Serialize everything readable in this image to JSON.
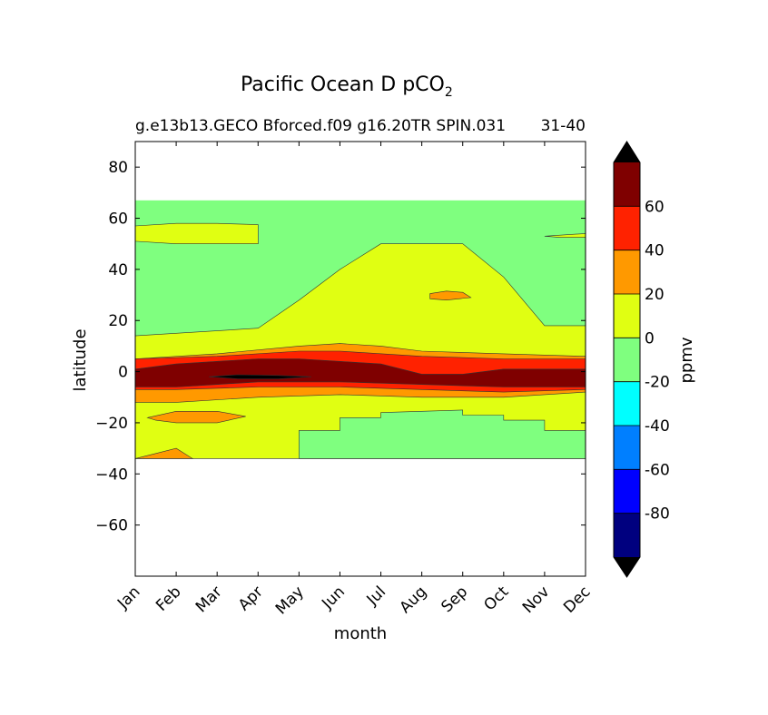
{
  "chart_data": {
    "type": "contourf",
    "title": "Pacific Ocean D pCO",
    "title_subscript": "2",
    "subtitle_left": "g.e13b13.GECO Bforced.f09 g16.20TR SPIN.031",
    "subtitle_right": "31-40",
    "xlabel": "month",
    "ylabel": "latitude",
    "x_categories": [
      "Jan",
      "Feb",
      "Mar",
      "Apr",
      "May",
      "Jun",
      "Jul",
      "Aug",
      "Sep",
      "Oct",
      "Nov",
      "Dec"
    ],
    "yticks": [
      -60,
      -40,
      -20,
      0,
      20,
      40,
      60,
      80
    ],
    "ytick_labels": [
      "−60",
      "−40",
      "−20",
      "0",
      "20",
      "40",
      "60",
      "80"
    ],
    "ylim": [
      -80,
      90
    ],
    "data_lat_range": [
      -34,
      67
    ],
    "colorbar": {
      "label": "ppmv",
      "levels": [
        -100,
        -80,
        -60,
        -40,
        -20,
        0,
        20,
        40,
        60,
        80
      ],
      "tick_values": [
        -80,
        -60,
        -40,
        -20,
        0,
        20,
        40,
        60
      ],
      "tick_labels": [
        "-80",
        "-60",
        "-40",
        "-20",
        "0",
        "20",
        "40",
        "60"
      ],
      "colors": [
        "#00007f",
        "#0000ff",
        "#007fff",
        "#00ffff",
        "#7fff7f",
        "#e0ff12",
        "#ff9900",
        "#ff2200",
        "#7f0000"
      ],
      "under_color": "#000000",
      "over_color": "#000000",
      "extend": "both"
    },
    "regions": [
      {
        "name": "band-yellow",
        "level": "0 to 20",
        "color": "#e0ff12",
        "points": [
          [
            1,
            14
          ],
          [
            4,
            17
          ],
          [
            5,
            28
          ],
          [
            6,
            40
          ],
          [
            7,
            50
          ],
          [
            9,
            50
          ],
          [
            10,
            37
          ],
          [
            11,
            18
          ],
          [
            12,
            18
          ],
          [
            12,
            -12
          ],
          [
            10,
            -12
          ],
          [
            8,
            -10
          ],
          [
            6,
            -8
          ],
          [
            4,
            -8
          ],
          [
            2,
            -8
          ],
          [
            1,
            -8
          ]
        ]
      },
      {
        "name": "band-yellow-south",
        "level": "0 to 20",
        "color": "#e0ff12",
        "points": [
          [
            1,
            -6
          ],
          [
            12,
            -6
          ],
          [
            12,
            -34
          ],
          [
            1,
            -34
          ]
        ]
      },
      {
        "name": "band-green-south",
        "level": "-20 to 0",
        "color": "#7fff7f",
        "points": [
          [
            5,
            -34
          ],
          [
            5,
            -23
          ],
          [
            6,
            -23
          ],
          [
            6,
            -18
          ],
          [
            7,
            -18
          ],
          [
            7,
            -16
          ],
          [
            9,
            -15
          ],
          [
            9,
            -17
          ],
          [
            10,
            -17
          ],
          [
            10,
            -19
          ],
          [
            11,
            -19
          ],
          [
            11,
            -23
          ],
          [
            12,
            -23
          ],
          [
            12,
            -34
          ]
        ]
      },
      {
        "name": "band-orange-north",
        "level": "20 to 40",
        "color": "#ff9900",
        "points": [
          [
            1,
            5
          ],
          [
            3,
            7
          ],
          [
            5,
            10
          ],
          [
            6,
            11
          ],
          [
            7,
            10
          ],
          [
            8,
            8
          ],
          [
            10,
            7
          ],
          [
            12,
            6
          ],
          [
            12,
            -8
          ],
          [
            10,
            -10
          ],
          [
            8,
            -10
          ],
          [
            6,
            -9
          ],
          [
            4,
            -10
          ],
          [
            2,
            -12
          ],
          [
            1,
            -12
          ]
        ]
      },
      {
        "name": "band-red",
        "level": "40 to 60",
        "color": "#ff2200",
        "points": [
          [
            1,
            5
          ],
          [
            3,
            6
          ],
          [
            5,
            8
          ],
          [
            6,
            8
          ],
          [
            8,
            6
          ],
          [
            10,
            5
          ],
          [
            12,
            5
          ],
          [
            12,
            -7
          ],
          [
            10,
            -8
          ],
          [
            8,
            -7
          ],
          [
            6,
            -6
          ],
          [
            4,
            -6
          ],
          [
            2,
            -7
          ],
          [
            1,
            -7
          ]
        ]
      },
      {
        "name": "band-darkred",
        "level": "60 to 80",
        "color": "#7f0000",
        "points": [
          [
            1,
            1
          ],
          [
            2,
            3
          ],
          [
            4,
            5
          ],
          [
            5,
            5
          ],
          [
            6,
            4
          ],
          [
            7,
            3
          ],
          [
            8,
            -1
          ],
          [
            9,
            -1
          ],
          [
            10,
            1
          ],
          [
            12,
            1
          ],
          [
            12,
            -6
          ],
          [
            10,
            -6
          ],
          [
            8,
            -5
          ],
          [
            6,
            -4
          ],
          [
            4,
            -4
          ],
          [
            3,
            -5
          ],
          [
            2,
            -6
          ],
          [
            1,
            -6
          ]
        ]
      },
      {
        "name": "yellow-north-patch",
        "level": "0 to 20",
        "color": "#e0ff12",
        "points": [
          [
            1,
            57
          ],
          [
            2,
            58
          ],
          [
            3,
            58
          ],
          [
            4,
            57.5
          ],
          [
            4,
            50
          ],
          [
            3,
            50
          ],
          [
            2,
            50
          ],
          [
            1,
            51
          ]
        ]
      },
      {
        "name": "orange-south-patch",
        "level": "20 to 40",
        "color": "#ff9900",
        "points": [
          [
            1.3,
            -18
          ],
          [
            2,
            -15.5
          ],
          [
            3,
            -15.5
          ],
          [
            3.7,
            -17.5
          ],
          [
            3,
            -20
          ],
          [
            2,
            -20
          ],
          [
            1.5,
            -19
          ]
        ]
      },
      {
        "name": "orange-aug-patch",
        "level": "20 to 40",
        "color": "#ff9900",
        "points": [
          [
            8.2,
            30.5
          ],
          [
            8.6,
            31.5
          ],
          [
            9,
            31
          ],
          [
            9.2,
            29
          ],
          [
            8.6,
            28
          ],
          [
            8.2,
            28.5
          ]
        ]
      },
      {
        "name": "orange-jan-south",
        "level": "20 to 40",
        "color": "#ff9900",
        "points": [
          [
            1,
            -34
          ],
          [
            1.5,
            -32
          ],
          [
            2,
            -30
          ],
          [
            2.4,
            -34
          ]
        ]
      },
      {
        "name": "yellow-dec-patch",
        "level": "0 to 20",
        "color": "#e0ff12",
        "points": [
          [
            11,
            53
          ],
          [
            12,
            54
          ],
          [
            12,
            52.5
          ],
          [
            11.4,
            52.5
          ]
        ]
      },
      {
        "name": "black-core",
        "level": "above 80",
        "color": "#000000",
        "points": [
          [
            2.8,
            -2
          ],
          [
            3.5,
            -1.2
          ],
          [
            4.5,
            -1.5
          ],
          [
            5.3,
            -2
          ],
          [
            4.5,
            -2.8
          ],
          [
            3.5,
            -2.8
          ]
        ]
      }
    ]
  }
}
